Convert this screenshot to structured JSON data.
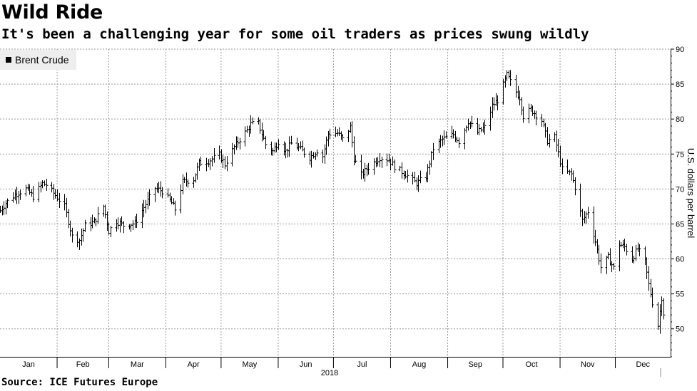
{
  "title": "Wild Ride",
  "subtitle": "It's been a challenging year for some oil traders as prices swung wildly",
  "source": "Source: ICE Futures Europe",
  "colors": {
    "series": "#000000",
    "grid": "#9a9a9a",
    "legend_bg": "#eeeeee"
  },
  "chart_data": {
    "type": "ohlc",
    "x_start": "2018-01-01",
    "x_end": "2018-12-31",
    "xlabel": "2018",
    "ylabel": "U.S. dollars per barrel",
    "ylim": [
      46,
      90
    ],
    "yticks": [
      50,
      55,
      60,
      65,
      70,
      75,
      80,
      85,
      90
    ],
    "y_axis_position": "right",
    "grid": true,
    "legend_position": "top-left",
    "months": [
      "Jan",
      "Feb",
      "Mar",
      "Apr",
      "May",
      "Jun",
      "Jul",
      "Aug",
      "Sep",
      "Oct",
      "Nov",
      "Dec"
    ],
    "series": [
      {
        "name": "Brent Crude",
        "price_path": [
          [
            "2018-01-01",
            66.9
          ],
          [
            "2018-01-04",
            68.0
          ],
          [
            "2018-01-09",
            69.2
          ],
          [
            "2018-01-15",
            70.0
          ],
          [
            "2018-01-19",
            68.9
          ],
          [
            "2018-01-24",
            70.8
          ],
          [
            "2018-01-26",
            70.6
          ],
          [
            "2018-01-31",
            69.1
          ],
          [
            "2018-02-05",
            67.5
          ],
          [
            "2018-02-09",
            63.2
          ],
          [
            "2018-02-13",
            62.7
          ],
          [
            "2018-02-16",
            64.8
          ],
          [
            "2018-02-21",
            65.3
          ],
          [
            "2018-02-26",
            67.5
          ],
          [
            "2018-03-01",
            64.0
          ],
          [
            "2018-03-05",
            65.4
          ],
          [
            "2018-03-09",
            64.8
          ],
          [
            "2018-03-15",
            65.1
          ],
          [
            "2018-03-20",
            67.4
          ],
          [
            "2018-03-26",
            70.1
          ],
          [
            "2018-03-30",
            69.7
          ],
          [
            "2018-04-04",
            68.0
          ],
          [
            "2018-04-06",
            67.1
          ],
          [
            "2018-04-10",
            71.0
          ],
          [
            "2018-04-16",
            71.4
          ],
          [
            "2018-04-19",
            73.7
          ],
          [
            "2018-04-24",
            74.0
          ],
          [
            "2018-04-30",
            74.9
          ],
          [
            "2018-05-03",
            73.5
          ],
          [
            "2018-05-08",
            76.0
          ],
          [
            "2018-05-11",
            77.1
          ],
          [
            "2018-05-15",
            78.4
          ],
          [
            "2018-05-17",
            79.3
          ],
          [
            "2018-05-21",
            79.4
          ],
          [
            "2018-05-25",
            76.4
          ],
          [
            "2018-05-29",
            75.4
          ],
          [
            "2018-06-01",
            76.8
          ],
          [
            "2018-06-05",
            75.4
          ],
          [
            "2018-06-08",
            76.5
          ],
          [
            "2018-06-12",
            75.9
          ],
          [
            "2018-06-18",
            74.5
          ],
          [
            "2018-06-22",
            75.5
          ],
          [
            "2018-06-25",
            74.7
          ],
          [
            "2018-06-28",
            77.9
          ],
          [
            "2018-07-03",
            78.0
          ],
          [
            "2018-07-06",
            77.1
          ],
          [
            "2018-07-10",
            78.9
          ],
          [
            "2018-07-12",
            74.4
          ],
          [
            "2018-07-16",
            72.0
          ],
          [
            "2018-07-20",
            73.1
          ],
          [
            "2018-07-26",
            74.5
          ],
          [
            "2018-07-31",
            74.2
          ],
          [
            "2018-08-03",
            73.2
          ],
          [
            "2018-08-09",
            72.1
          ],
          [
            "2018-08-15",
            70.8
          ],
          [
            "2018-08-20",
            71.8
          ],
          [
            "2018-08-24",
            75.8
          ],
          [
            "2018-08-29",
            77.1
          ],
          [
            "2018-09-04",
            77.8
          ],
          [
            "2018-09-07",
            76.8
          ],
          [
            "2018-09-12",
            79.7
          ],
          [
            "2018-09-17",
            78.1
          ],
          [
            "2018-09-21",
            78.8
          ],
          [
            "2018-09-25",
            81.9
          ],
          [
            "2018-09-28",
            82.7
          ],
          [
            "2018-10-03",
            86.3
          ],
          [
            "2018-10-08",
            83.9
          ],
          [
            "2018-10-10",
            83.1
          ],
          [
            "2018-10-12",
            80.4
          ],
          [
            "2018-10-16",
            81.4
          ],
          [
            "2018-10-22",
            79.8
          ],
          [
            "2018-10-25",
            76.9
          ],
          [
            "2018-10-29",
            77.4
          ],
          [
            "2018-11-02",
            72.8
          ],
          [
            "2018-11-07",
            72.1
          ],
          [
            "2018-11-09",
            70.2
          ],
          [
            "2018-11-13",
            65.5
          ],
          [
            "2018-11-16",
            66.8
          ],
          [
            "2018-11-20",
            62.5
          ],
          [
            "2018-11-23",
            58.8
          ],
          [
            "2018-11-27",
            60.2
          ],
          [
            "2018-11-30",
            58.7
          ],
          [
            "2018-12-03",
            62.1
          ],
          [
            "2018-12-06",
            61.7
          ],
          [
            "2018-12-10",
            60.0
          ],
          [
            "2018-12-13",
            61.5
          ],
          [
            "2018-12-17",
            59.6
          ],
          [
            "2018-12-19",
            56.3
          ],
          [
            "2018-12-21",
            53.8
          ],
          [
            "2018-12-24",
            50.5
          ],
          [
            "2018-12-26",
            54.5
          ],
          [
            "2018-12-27",
            52.2
          ]
        ]
      }
    ]
  }
}
